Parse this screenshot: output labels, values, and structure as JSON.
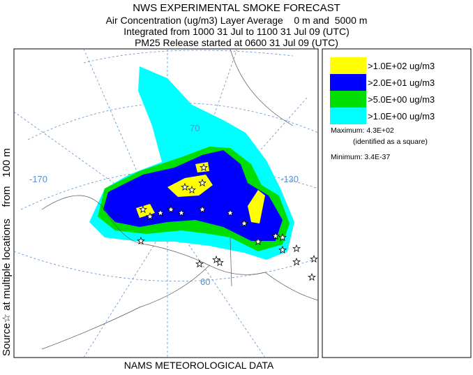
{
  "header": {
    "title": "NWS EXPERIMENTAL SMOKE FORECAST",
    "lines": [
      "Air Concentration (ug/m3) Layer Average    0 m and  5000 m",
      "Integrated from 1000 31 Jul to 1100 31 Jul 09 (UTC)",
      "PM25 Release started at 0600 31 Jul 09 (UTC)"
    ]
  },
  "side_label": "Source☆ at multiple locations    from   100 m",
  "footer": "NAMS METEOROLOGICAL DATA",
  "map_labels": [
    "-170",
    "-130",
    "70",
    "60"
  ],
  "legend": {
    "items": [
      {
        "label": ">1.0E+02 ug/m3",
        "color": "#ffff00"
      },
      {
        "label": ">2.0E+01 ug/m3",
        "color": "#0000ff"
      },
      {
        "label": ">5.0E+00 ug/m3",
        "color": "#00dd00"
      },
      {
        "label": ">1.0E+00 ug/m3",
        "color": "#00ffff"
      }
    ],
    "maximum": "Maximum: 4.3E+02",
    "maximum_note": "(identified as a square)",
    "minimum": "Minimum: 3.4E-37"
  }
}
